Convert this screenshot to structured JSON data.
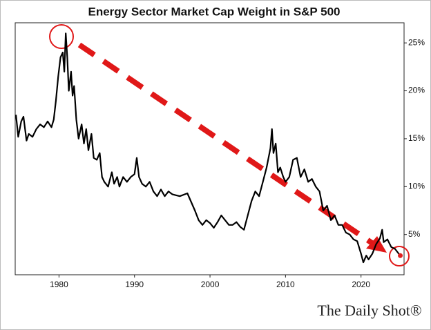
{
  "chart_data": {
    "type": "line",
    "title": "Energy Sector Market Cap Weight in S&P 500",
    "source": "The Daily Shot®",
    "xlim": [
      1974.2,
      2025.7
    ],
    "xticks": [
      1980,
      1990,
      2000,
      2010,
      2020
    ],
    "ylim": [
      0.8,
      27.1
    ],
    "yticks": [
      {
        "value": 5,
        "label": "5%"
      },
      {
        "value": 10,
        "label": "10%"
      },
      {
        "value": 15,
        "label": "15%"
      },
      {
        "value": 20,
        "label": "20%"
      },
      {
        "value": 25,
        "label": "25%"
      }
    ],
    "grid": false,
    "series": [
      {
        "color": "#000000",
        "marker_color": "#e02020",
        "x": [
          1974.3,
          1974.6,
          1975,
          1975.3,
          1975.7,
          1976,
          1976.5,
          1977,
          1977.5,
          1978,
          1978.5,
          1979,
          1979.3,
          1979.6,
          1979.9,
          1980.2,
          1980.5,
          1980.7,
          1980.9,
          1981.1,
          1981.3,
          1981.6,
          1981.8,
          1982,
          1982.3,
          1982.6,
          1983,
          1983.3,
          1983.6,
          1983.9,
          1984.3,
          1984.6,
          1985,
          1985.4,
          1985.7,
          1986,
          1986.5,
          1987,
          1987.3,
          1987.7,
          1988,
          1988.5,
          1989,
          1989.5,
          1990,
          1990.3,
          1990.6,
          1991,
          1991.5,
          1992,
          1992.5,
          1993,
          1993.5,
          1994,
          1994.5,
          1995,
          1996,
          1997,
          1998,
          1998.5,
          1999,
          1999.5,
          2000,
          2000.5,
          2001,
          2001.5,
          2002,
          2002.5,
          2003,
          2003.5,
          2004,
          2004.5,
          2005,
          2005.5,
          2006,
          2006.5,
          2007,
          2007.5,
          2008,
          2008.2,
          2008.4,
          2008.7,
          2009,
          2009.3,
          2009.7,
          2010,
          2010.5,
          2011,
          2011.5,
          2012,
          2012.5,
          2013,
          2013.5,
          2014,
          2014.5,
          2015,
          2015.5,
          2016,
          2016.5,
          2017,
          2017.5,
          2018,
          2018.5,
          2019,
          2019.5,
          2020,
          2020.3,
          2020.7,
          2021,
          2021.5,
          2022,
          2022.5,
          2022.8,
          2023,
          2023.5,
          2024,
          2024.5,
          2025,
          2025.2
        ],
        "values": [
          17.5,
          15.2,
          16.8,
          17.3,
          14.8,
          15.5,
          15.2,
          16,
          16.5,
          16.2,
          16.8,
          16.2,
          17,
          19,
          21.5,
          23.5,
          24,
          22,
          26,
          23.5,
          20,
          22,
          19.5,
          20.5,
          17,
          15,
          16.5,
          14.5,
          16,
          13.8,
          15.5,
          13,
          12.8,
          13.5,
          11,
          10.5,
          10,
          11.5,
          10.3,
          11,
          10,
          11,
          10.5,
          11,
          11.3,
          13,
          11,
          10.3,
          10,
          10.5,
          9.5,
          9,
          9.7,
          9,
          9.5,
          9.2,
          9,
          9.3,
          7.5,
          6.5,
          6,
          6.5,
          6.2,
          5.7,
          6.3,
          7,
          6.5,
          6,
          6,
          6.3,
          5.8,
          5.5,
          7,
          8.5,
          9.5,
          9,
          10.5,
          12,
          14,
          16,
          13.5,
          14.5,
          11.5,
          12,
          11,
          10.5,
          11,
          12.8,
          13,
          11,
          11.8,
          10.5,
          10.8,
          10,
          9.5,
          7.5,
          8,
          6.5,
          7,
          6,
          6,
          5.2,
          5,
          4.5,
          4.3,
          3,
          2.1,
          2.8,
          2.4,
          3,
          4,
          4.6,
          5.5,
          4.2,
          4.5,
          3.7,
          3.5,
          3,
          2.8
        ]
      }
    ]
  }
}
